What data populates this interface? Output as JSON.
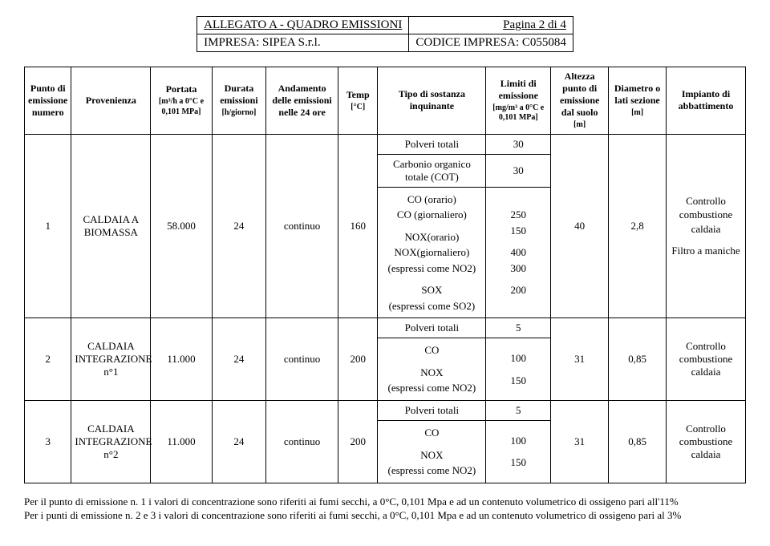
{
  "header": {
    "title": "ALLEGATO A  -  QUADRO EMISSIONI",
    "page": "Pagina 2 di 4",
    "impresa": "IMPRESA: SIPEA S.r.l.",
    "codice": "CODICE IMPRESA:  C055084"
  },
  "columns": {
    "c1": "Punto di emissione numero",
    "c2": "Provenienza",
    "c3": "Portata",
    "c3_sub": "[m³/h a 0°C e 0,101 MPa]",
    "c4": "Durata emissioni",
    "c4_sub": "[h/giorno]",
    "c5": "Andamento delle emissioni nelle 24 ore",
    "c6": "Temp",
    "c6_sub": "[°C]",
    "c7": "Tipo di sostanza inquinante",
    "c8": "Limiti di emissione",
    "c8_sub": "[mg/m³ a 0°C e 0,101 MPa]",
    "c9": "Altezza punto di emissione dal suolo",
    "c9_sub": "[m]",
    "c10": "Diametro o lati sezione",
    "c10_sub": "[m]",
    "c11": "Impianto di abbattimento"
  },
  "rows": {
    "r0_tipo": "Polveri totali",
    "r0_lim": "30",
    "r0b_tipo": "Carbonio organico totale (COT)",
    "r0b_lim": "30",
    "r1": {
      "punto": "1",
      "prov": "CALDAIA A BIOMASSA",
      "portata": "58.000",
      "durata": "24",
      "andam": "continuo",
      "temp": "160",
      "tipo_l1": "CO (orario)",
      "tipo_l2": "CO (giornaliero)",
      "tipo_l3": "NOX(orario)",
      "tipo_l4": "NOX(giornaliero)",
      "tipo_l5": "(espressi come NO2)",
      "tipo_l6": "SOX",
      "tipo_l7": "(espressi come SO2)",
      "lim_l1": "250",
      "lim_l2": "150",
      "lim_l3": "400",
      "lim_l4": "300",
      "lim_l5": "200",
      "alt": "40",
      "diam": "2,8",
      "imp_l1": "Controllo combustione caldaia",
      "imp_l2": "Filtro a maniche"
    },
    "r2": {
      "punto": "2",
      "prov": "CALDAIA INTEGRAZIONE n°1",
      "portata": "11.000",
      "durata": "24",
      "andam": "continuo",
      "temp": "200",
      "tipo_l0": "Polveri totali",
      "tipo_l1": "CO",
      "tipo_l2": "NOX",
      "tipo_l3": "(espressi come NO2)",
      "lim_l0": "5",
      "lim_l1": "100",
      "lim_l2": "150",
      "alt": "31",
      "diam": "0,85",
      "imp": "Controllo combustione caldaia"
    },
    "r3": {
      "punto": "3",
      "prov": "CALDAIA INTEGRAZIONE n°2",
      "portata": "11.000",
      "durata": "24",
      "andam": "continuo",
      "temp": "200",
      "tipo_l0": "Polveri totali",
      "tipo_l1": "CO",
      "tipo_l2": "NOX",
      "tipo_l3": "(espressi come NO2)",
      "lim_l0": "5",
      "lim_l1": "100",
      "lim_l2": "150",
      "alt": "31",
      "diam": "0,85",
      "imp": "Controllo combustione caldaia"
    }
  },
  "footer": {
    "line1": "Per il punto di emissione n. 1 i valori di concentrazione sono riferiti ai fumi secchi, a 0°C, 0,101 Mpa e ad un contenuto volumetrico di ossigeno pari all'11%",
    "line2": "Per i punti di emissione n. 2 e 3 i valori di concentrazione sono riferiti ai fumi secchi, a 0°C, 0,101 Mpa e ad un contenuto volumetrico di ossigeno pari al 3%"
  }
}
